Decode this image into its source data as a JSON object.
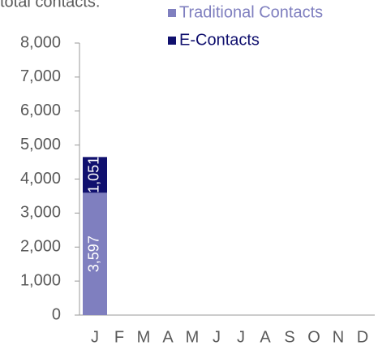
{
  "chart_data": {
    "type": "stacked_bar",
    "title": "total contacts.",
    "categories": [
      "J",
      "F",
      "M",
      "A",
      "M",
      "J",
      "J",
      "A",
      "S",
      "O",
      "N",
      "D"
    ],
    "series": [
      {
        "name": "Traditional Contacts",
        "color": "#7f7fbf",
        "values": [
          3597,
          null,
          null,
          null,
          null,
          null,
          null,
          null,
          null,
          null,
          null,
          null
        ],
        "value_labels": [
          "3,597",
          null,
          null,
          null,
          null,
          null,
          null,
          null,
          null,
          null,
          null,
          null
        ]
      },
      {
        "name": "E-Contacts",
        "color": "#10106e",
        "values": [
          1051,
          null,
          null,
          null,
          null,
          null,
          null,
          null,
          null,
          null,
          null,
          null
        ],
        "value_labels": [
          "1,051",
          null,
          null,
          null,
          null,
          null,
          null,
          null,
          null,
          null,
          null,
          null
        ]
      }
    ],
    "ylim": [
      0,
      8000
    ],
    "yticks": [
      0,
      {
        "value": 1000,
        "label": "1,000"
      },
      {
        "value": 2000,
        "label": "2,000"
      },
      {
        "value": 3000,
        "label": "3,000"
      },
      {
        "value": 4000,
        "label": "4,000"
      },
      {
        "value": 5000,
        "label": "5,000"
      },
      {
        "value": 6000,
        "label": "6,000"
      },
      {
        "value": 7000,
        "label": "7,000"
      },
      {
        "value": 8000,
        "label": "8,000"
      }
    ],
    "legend": "top-right",
    "grid": false
  }
}
